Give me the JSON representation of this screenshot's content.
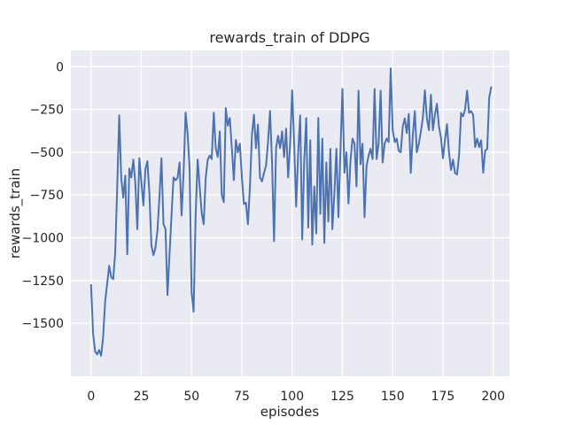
{
  "chart_data": {
    "type": "line",
    "title": "rewards_train of DDPG",
    "xlabel": "episodes",
    "ylabel": "rewards_train",
    "x_tick_labels": [
      0,
      25,
      50,
      75,
      100,
      125,
      150,
      175,
      200
    ],
    "y_tick_labels": [
      0,
      -250,
      -500,
      -750,
      -1000,
      -1250,
      -1500
    ],
    "xlim": [
      -10.05,
      208.05
    ],
    "ylim": [
      -1810,
      95
    ],
    "grid": true,
    "legend_position": "none",
    "colors": {
      "axes_background": "#eaeaf2",
      "gridline": "#ffffff",
      "line": "#4c72b0",
      "text": "#262626",
      "figure_background": "#ffffff"
    },
    "series": [
      {
        "name": "rewards_train",
        "color": "#4c72b0",
        "x_range": [
          0,
          199
        ],
        "x_is_index": true,
        "values": [
          -1276,
          -1560,
          -1665,
          -1682,
          -1656,
          -1690,
          -1578,
          -1371,
          -1268,
          -1164,
          -1230,
          -1242,
          -1087,
          -700,
          -285,
          -650,
          -766,
          -637,
          -1097,
          -595,
          -647,
          -543,
          -680,
          -950,
          -535,
          -673,
          -811,
          -600,
          -552,
          -740,
          -1044,
          -1102,
          -1060,
          -957,
          -760,
          -535,
          -921,
          -947,
          -1335,
          -1100,
          -870,
          -647,
          -664,
          -650,
          -560,
          -870,
          -620,
          -268,
          -390,
          -595,
          -1320,
          -1432,
          -870,
          -543,
          -699,
          -854,
          -921,
          -650,
          -543,
          -520,
          -540,
          -269,
          -476,
          -528,
          -378,
          -750,
          -792,
          -242,
          -345,
          -300,
          -476,
          -663,
          -428,
          -500,
          -450,
          -647,
          -802,
          -795,
          -921,
          -700,
          -400,
          -280,
          -476,
          -337,
          -647,
          -671,
          -620,
          -580,
          -440,
          -259,
          -560,
          -1020,
          -476,
          -404,
          -476,
          -378,
          -528,
          -362,
          -647,
          -450,
          -138,
          -450,
          -818,
          -500,
          -285,
          -1010,
          -550,
          -300,
          -940,
          -430,
          -1040,
          -700,
          -975,
          -300,
          -860,
          -420,
          -1030,
          -560,
          -905,
          -480,
          -950,
          -740,
          -480,
          -880,
          -500,
          -130,
          -620,
          -500,
          -800,
          -550,
          -420,
          -450,
          -700,
          -140,
          -570,
          -450,
          -880,
          -580,
          -520,
          -480,
          -540,
          -130,
          -540,
          -450,
          -140,
          -560,
          -450,
          -420,
          -440,
          -10,
          -370,
          -440,
          -420,
          -492,
          -500,
          -350,
          -302,
          -388,
          -276,
          -621,
          -400,
          -259,
          -500,
          -450,
          -380,
          -300,
          -138,
          -300,
          -371,
          -164,
          -371,
          -280,
          -216,
          -350,
          -414,
          -535,
          -430,
          -336,
          -500,
          -604,
          -543,
          -621,
          -630,
          -520,
          -270,
          -290,
          -250,
          -140,
          -270,
          -260,
          -280,
          -470,
          -420,
          -470,
          -430,
          -620,
          -490,
          -480,
          -180,
          -120
        ]
      }
    ]
  }
}
